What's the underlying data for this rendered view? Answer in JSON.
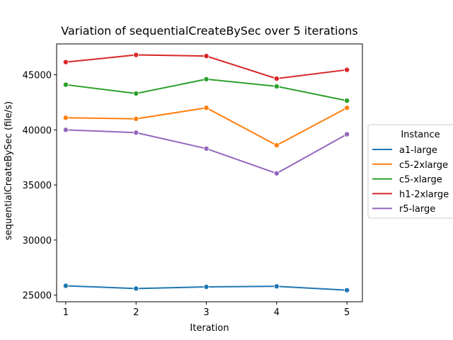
{
  "chart_data": {
    "type": "line",
    "title": "Variation of sequentialCreateBySec over 5 iterations",
    "xlabel": "Iteration",
    "ylabel": "sequentialCreateBySec (file/s)",
    "x": [
      1,
      2,
      3,
      4,
      5
    ],
    "xlim": [
      0.87,
      5.22
    ],
    "ylim": [
      24400,
      47800
    ],
    "yticks": [
      25000,
      30000,
      35000,
      40000,
      45000
    ],
    "grid": false,
    "legend": {
      "title": "Instance",
      "placement": "right"
    },
    "series": [
      {
        "name": "a1-large",
        "color": "#1f77b4",
        "values": [
          25850,
          25600,
          25750,
          25800,
          25450
        ]
      },
      {
        "name": "c5-2xlarge",
        "color": "#ff7f0e",
        "values": [
          41100,
          41000,
          42000,
          38600,
          42000
        ]
      },
      {
        "name": "c5-xlarge",
        "color": "#2ca02c",
        "values": [
          44100,
          43300,
          44600,
          43950,
          42650
        ]
      },
      {
        "name": "h1-2xlarge",
        "color": "#d62728",
        "values": [
          46150,
          46800,
          46700,
          44650,
          45450
        ]
      },
      {
        "name": "r5-large",
        "color": "#9467bd",
        "values": [
          40000,
          39750,
          38300,
          36050,
          39600
        ]
      }
    ]
  }
}
